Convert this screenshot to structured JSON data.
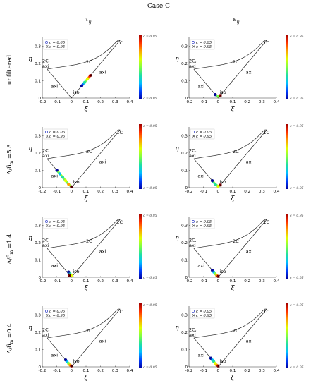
{
  "figure": {
    "title": "Case C",
    "columns": [
      {
        "id": "tau",
        "title": "τ",
        "sub": "ij"
      },
      {
        "id": "eps",
        "title": "ε",
        "sub": "ij"
      }
    ],
    "rows": [
      {
        "label": "unfiltered"
      },
      {
        "label": "Δ/δ",
        "sub": "m",
        "tail": " =5.8"
      },
      {
        "label": "Δ/δ",
        "sub": "m",
        "tail": " =1.4"
      },
      {
        "label": "Δ/δ",
        "sub": "m",
        "tail": " =0.4"
      }
    ]
  },
  "colorbar": {
    "top_label": "c = 0.95",
    "bottom_label": "c = 0.05",
    "stops": [
      "#0000a0",
      "#0040ff",
      "#00c0ff",
      "#20e0a0",
      "#80ff40",
      "#e0ff00",
      "#ffa000",
      "#ff3000",
      "#a00000"
    ]
  },
  "legend": {
    "marker_low": "o",
    "label_low": "c = 0.05",
    "marker_high": "×",
    "label_high": "c = 0.95"
  },
  "region_labels": {
    "two_c": "2C",
    "two_c_axi": "2C,",
    "two_c_axi2": "axi",
    "one_c": "1C",
    "axi_left": "axi",
    "axi_right": "axi",
    "iso": "iso"
  },
  "chart_data": [
    {
      "type": "scatter",
      "panel": "unfiltered-tau",
      "xlabel": "ξ",
      "ylabel": "η",
      "xlim": [
        -0.2,
        0.4
      ],
      "ylim": [
        0,
        0.35
      ],
      "xticks": [
        "-0.2",
        "-0.1",
        "0",
        "0.1",
        "0.2",
        "0.3",
        "0.4"
      ],
      "yticks": [
        "0",
        "0.1",
        "0.2",
        "0.3"
      ],
      "boundary": {
        "x": [
          -0.1667,
          0,
          0.3333
        ],
        "y": [
          0.1667,
          0,
          0.3333
        ]
      },
      "trajectory": [
        [
          0.07,
          0.07
        ],
        [
          0.09,
          0.09
        ],
        [
          0.11,
          0.11
        ],
        [
          0.13,
          0.13
        ]
      ],
      "c_range": [
        0.05,
        0.95
      ]
    },
    {
      "type": "scatter",
      "panel": "unfiltered-eps",
      "xlabel": "ξ",
      "ylabel": "η",
      "xlim": [
        -0.2,
        0.4
      ],
      "ylim": [
        0,
        0.35
      ],
      "xticks": [
        "-0.2",
        "-0.1",
        "0",
        "0.1",
        "0.2",
        "0.3",
        "0.4"
      ],
      "yticks": [
        "0",
        "0.1",
        "0.2",
        "0.3"
      ],
      "boundary": {
        "x": [
          -0.1667,
          0,
          0.3333
        ],
        "y": [
          0.1667,
          0,
          0.3333
        ]
      },
      "trajectory": [
        [
          -0.02,
          0.02
        ],
        [
          0,
          0.01
        ],
        [
          0.015,
          0.015
        ]
      ],
      "c_range": [
        0.05,
        0.95
      ]
    },
    {
      "type": "scatter",
      "panel": "5.8-tau",
      "xlabel": "ξ",
      "ylabel": "η",
      "xlim": [
        -0.2,
        0.4
      ],
      "ylim": [
        0,
        0.35
      ],
      "xticks": [
        "-0.2",
        "-0.1",
        "0",
        "0.1",
        "0.2",
        "0.3",
        "0.4"
      ],
      "yticks": [
        "0",
        "0.1",
        "0.2",
        "0.3"
      ],
      "boundary": {
        "x": [
          -0.1667,
          0,
          0.3333
        ],
        "y": [
          0.1667,
          0,
          0.3333
        ]
      },
      "trajectory": [
        [
          -0.1,
          0.1
        ],
        [
          -0.08,
          0.08
        ],
        [
          -0.06,
          0.06
        ],
        [
          -0.04,
          0.04
        ],
        [
          -0.02,
          0.02
        ],
        [
          0,
          0.005
        ]
      ],
      "c_range": [
        0.05,
        0.95
      ]
    },
    {
      "type": "scatter",
      "panel": "5.8-eps",
      "xlabel": "ξ",
      "ylabel": "η",
      "xlim": [
        -0.2,
        0.4
      ],
      "ylim": [
        0,
        0.35
      ],
      "xticks": [
        "-0.2",
        "-0.1",
        "0",
        "0.1",
        "0.2",
        "0.3",
        "0.4"
      ],
      "yticks": [
        "0",
        "0.1",
        "0.2",
        "0.3"
      ],
      "boundary": {
        "x": [
          -0.1667,
          0,
          0.3333
        ],
        "y": [
          0.1667,
          0,
          0.3333
        ]
      },
      "trajectory": [
        [
          -0.04,
          0.04
        ],
        [
          -0.02,
          0.02
        ],
        [
          0,
          0.008
        ],
        [
          0.015,
          0.015
        ]
      ],
      "c_range": [
        0.05,
        0.95
      ]
    },
    {
      "type": "scatter",
      "panel": "1.4-tau",
      "xlabel": "ξ",
      "ylabel": "η",
      "xlim": [
        -0.2,
        0.4
      ],
      "ylim": [
        0,
        0.35
      ],
      "xticks": [
        "-0.2",
        "-0.1",
        "0",
        "0.1",
        "0.2",
        "0.3",
        "0.4"
      ],
      "yticks": [
        "0",
        "0.1",
        "0.2",
        "0.3"
      ],
      "boundary": {
        "x": [
          -0.1667,
          0,
          0.3333
        ],
        "y": [
          0.1667,
          0,
          0.3333
        ]
      },
      "trajectory": [
        [
          -0.02,
          0.03
        ],
        [
          -0.01,
          0.02
        ],
        [
          0,
          0.01
        ],
        [
          -0.015,
          0.01
        ]
      ],
      "c_range": [
        0.05,
        0.95
      ]
    },
    {
      "type": "scatter",
      "panel": "1.4-eps",
      "xlabel": "ξ",
      "ylabel": "η",
      "xlim": [
        -0.2,
        0.4
      ],
      "ylim": [
        0,
        0.35
      ],
      "xticks": [
        "-0.2",
        "-0.1",
        "0",
        "0.1",
        "0.2",
        "0.3",
        "0.4"
      ],
      "yticks": [
        "0",
        "0.1",
        "0.2",
        "0.3"
      ],
      "boundary": {
        "x": [
          -0.1667,
          0,
          0.3333
        ],
        "y": [
          0.1667,
          0,
          0.3333
        ]
      },
      "trajectory": [
        [
          -0.04,
          0.04
        ],
        [
          -0.03,
          0.03
        ],
        [
          -0.02,
          0.02
        ],
        [
          -0.01,
          0.01
        ],
        [
          0,
          0.005
        ]
      ],
      "c_range": [
        0.05,
        0.95
      ]
    },
    {
      "type": "scatter",
      "panel": "0.4-tau",
      "xlabel": "ξ",
      "ylabel": "η",
      "xlim": [
        -0.2,
        0.4
      ],
      "ylim": [
        0,
        0.35
      ],
      "xticks": [
        "-0.2",
        "-0.1",
        "0",
        "0.1",
        "0.2",
        "0.3",
        "0.4"
      ],
      "yticks": [
        "0",
        "0.1",
        "0.2",
        "0.3"
      ],
      "boundary": {
        "x": [
          -0.1667,
          0,
          0.3333
        ],
        "y": [
          0.1667,
          0,
          0.3333
        ]
      },
      "trajectory": [
        [
          -0.04,
          0.04
        ],
        [
          -0.03,
          0.03
        ],
        [
          -0.02,
          0.02
        ],
        [
          -0.01,
          0.01
        ],
        [
          0,
          0.005
        ]
      ],
      "c_range": [
        0.05,
        0.95
      ]
    },
    {
      "type": "scatter",
      "panel": "0.4-eps",
      "xlabel": "ξ",
      "ylabel": "η",
      "xlim": [
        -0.2,
        0.4
      ],
      "ylim": [
        0,
        0.35
      ],
      "xticks": [
        "-0.2",
        "-0.1",
        "0",
        "0.1",
        "0.2",
        "0.3",
        "0.4"
      ],
      "yticks": [
        "0",
        "0.1",
        "0.2",
        "0.3"
      ],
      "boundary": {
        "x": [
          -0.1667,
          0,
          0.3333
        ],
        "y": [
          0.1667,
          0,
          0.3333
        ]
      },
      "trajectory": [
        [
          -0.05,
          0.05
        ],
        [
          -0.04,
          0.04
        ],
        [
          -0.03,
          0.03
        ],
        [
          -0.02,
          0.02
        ],
        [
          -0.01,
          0.01
        ],
        [
          0,
          0.005
        ]
      ],
      "c_range": [
        0.05,
        0.95
      ]
    }
  ]
}
